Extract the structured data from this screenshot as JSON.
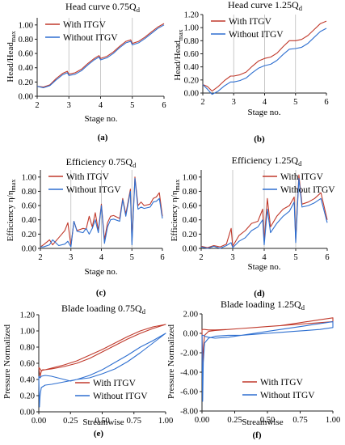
{
  "figure": {
    "background": "#ffffff",
    "axis_color": "#222222",
    "line_width": 1
  },
  "series_colors": {
    "with": "#c0392b",
    "without": "#2e6fd0"
  },
  "chart_data": [
    {
      "id": "a",
      "type": "line",
      "title": "Head curve 0.75Q",
      "title_sub": "d",
      "ylabel": "Head/Head",
      "ylabel_sub": "max",
      "xlabel": "Stage no.",
      "panel_label": "(a)",
      "xlim": [
        2,
        6
      ],
      "ylim": [
        0,
        1.1
      ],
      "xticks": [
        2,
        3,
        4,
        5,
        6
      ],
      "yticks": [
        0.0,
        0.2,
        0.4,
        0.6,
        0.8,
        1.0
      ],
      "ytick_labels": [
        "0.00",
        "0.20",
        "0.40",
        "0.60",
        "0.80",
        "1.00"
      ],
      "vlines": [
        3,
        4,
        5
      ],
      "legend": "top-left",
      "series": [
        {
          "name": "With ITGV",
          "key": "with",
          "x": [
            2.0,
            2.2,
            2.4,
            2.6,
            2.8,
            2.95,
            3.0,
            3.2,
            3.4,
            3.6,
            3.8,
            3.95,
            4.0,
            4.2,
            4.4,
            4.6,
            4.8,
            4.95,
            5.0,
            5.2,
            5.4,
            5.6,
            5.8,
            6.0
          ],
          "y": [
            0.14,
            0.13,
            0.16,
            0.25,
            0.32,
            0.35,
            0.31,
            0.33,
            0.38,
            0.46,
            0.53,
            0.57,
            0.53,
            0.56,
            0.62,
            0.7,
            0.77,
            0.79,
            0.74,
            0.77,
            0.83,
            0.9,
            0.97,
            1.02
          ]
        },
        {
          "name": "Without ITGV",
          "key": "without",
          "x": [
            2.0,
            2.2,
            2.4,
            2.6,
            2.8,
            2.95,
            3.0,
            3.2,
            3.4,
            3.6,
            3.8,
            3.95,
            4.0,
            4.2,
            4.4,
            4.6,
            4.8,
            4.95,
            5.0,
            5.2,
            5.4,
            5.6,
            5.8,
            6.0
          ],
          "y": [
            0.14,
            0.12,
            0.15,
            0.23,
            0.3,
            0.33,
            0.29,
            0.31,
            0.36,
            0.44,
            0.51,
            0.55,
            0.51,
            0.54,
            0.6,
            0.68,
            0.75,
            0.77,
            0.72,
            0.75,
            0.81,
            0.88,
            0.95,
            1.0
          ]
        }
      ]
    },
    {
      "id": "b",
      "type": "line",
      "title": "Head curve 1.25Q",
      "title_sub": "d",
      "ylabel": "Head/Head",
      "ylabel_sub": "max",
      "xlabel": "Stage no.",
      "panel_label": "(b)",
      "xlim": [
        2,
        6
      ],
      "ylim": [
        0,
        1.2
      ],
      "xticks": [
        2,
        3,
        4,
        5,
        6
      ],
      "yticks": [
        0.0,
        0.2,
        0.4,
        0.6,
        0.8,
        1.0,
        1.2
      ],
      "ytick_labels": [
        "0.00",
        "0.20",
        "0.40",
        "0.60",
        "0.80",
        "1.00",
        "1.20"
      ],
      "vlines": [
        3,
        4,
        5
      ],
      "legend": "top-left",
      "series": [
        {
          "name": "With ITGV",
          "key": "with",
          "x": [
            2.0,
            2.15,
            2.3,
            2.5,
            2.7,
            2.9,
            3.0,
            3.2,
            3.4,
            3.6,
            3.8,
            4.0,
            4.2,
            4.4,
            4.6,
            4.8,
            5.0,
            5.2,
            5.4,
            5.6,
            5.8,
            6.0
          ],
          "y": [
            0.13,
            0.1,
            0.03,
            0.1,
            0.19,
            0.26,
            0.26,
            0.28,
            0.32,
            0.41,
            0.49,
            0.53,
            0.55,
            0.61,
            0.71,
            0.8,
            0.8,
            0.82,
            0.88,
            0.97,
            1.06,
            1.1
          ]
        },
        {
          "name": "Without ITGV",
          "key": "without",
          "x": [
            2.0,
            2.15,
            2.3,
            2.5,
            2.7,
            2.9,
            3.0,
            3.2,
            3.4,
            3.6,
            3.8,
            4.0,
            4.2,
            4.4,
            4.6,
            4.8,
            5.0,
            5.2,
            5.4,
            5.6,
            5.8,
            6.0
          ],
          "y": [
            0.13,
            0.06,
            -0.02,
            0.03,
            0.11,
            0.17,
            0.17,
            0.19,
            0.23,
            0.31,
            0.38,
            0.42,
            0.44,
            0.5,
            0.59,
            0.67,
            0.68,
            0.7,
            0.76,
            0.85,
            0.94,
            0.99
          ]
        }
      ]
    },
    {
      "id": "c",
      "type": "line",
      "title": "Efficiency 0.75Q",
      "title_sub": "d",
      "ylabel": "Efficiency η/η",
      "ylabel_sub": "max",
      "xlabel": "Stage no.",
      "panel_label": "(c)",
      "xlim": [
        2,
        6
      ],
      "ylim": [
        0,
        1.1
      ],
      "xticks": [
        2,
        3,
        4,
        5,
        6
      ],
      "yticks": [
        0.0,
        0.2,
        0.4,
        0.6,
        0.8,
        1.0
      ],
      "ytick_labels": [
        "0.00",
        "0.20",
        "0.40",
        "0.60",
        "0.80",
        "1.00"
      ],
      "vlines": [
        3,
        4,
        5
      ],
      "legend": "top-left",
      "series": [
        {
          "name": "With ITGV",
          "key": "with",
          "x": [
            2.0,
            2.1,
            2.3,
            2.4,
            2.6,
            2.8,
            2.9,
            3.0,
            3.1,
            3.2,
            3.4,
            3.5,
            3.6,
            3.7,
            3.8,
            3.9,
            4.0,
            4.1,
            4.2,
            4.3,
            4.4,
            4.6,
            4.7,
            4.8,
            4.95,
            5.0,
            5.1,
            5.2,
            5.3,
            5.4,
            5.6,
            5.7,
            5.8,
            5.9,
            6.0
          ],
          "y": [
            0.02,
            0.05,
            0.12,
            0.05,
            0.15,
            0.25,
            0.36,
            0.04,
            0.38,
            0.25,
            0.28,
            0.27,
            0.45,
            0.3,
            0.5,
            0.25,
            0.62,
            0.12,
            0.36,
            0.45,
            0.46,
            0.42,
            0.7,
            0.48,
            0.83,
            0.1,
            1.0,
            0.6,
            0.65,
            0.6,
            0.62,
            0.7,
            0.72,
            0.78,
            0.45
          ]
        },
        {
          "name": "Without ITGV",
          "key": "without",
          "x": [
            2.0,
            2.1,
            2.3,
            2.4,
            2.6,
            2.8,
            2.9,
            3.0,
            3.1,
            3.2,
            3.4,
            3.5,
            3.6,
            3.7,
            3.8,
            3.9,
            4.0,
            4.1,
            4.2,
            4.3,
            4.4,
            4.6,
            4.7,
            4.8,
            4.95,
            5.0,
            5.1,
            5.2,
            5.3,
            5.4,
            5.6,
            5.7,
            5.8,
            5.9,
            6.0
          ],
          "y": [
            0.02,
            0.02,
            0.05,
            0.12,
            0.04,
            0.06,
            0.1,
            0.02,
            0.38,
            0.24,
            0.22,
            0.28,
            0.2,
            0.28,
            0.4,
            0.22,
            0.6,
            0.07,
            0.3,
            0.4,
            0.41,
            0.38,
            0.68,
            0.45,
            0.8,
            0.05,
            0.98,
            0.55,
            0.58,
            0.56,
            0.58,
            0.65,
            0.66,
            0.7,
            0.42
          ]
        }
      ]
    },
    {
      "id": "d",
      "type": "line",
      "title": "Efficiency 1.25Q",
      "title_sub": "d",
      "ylabel": "Efficiency η/η",
      "ylabel_sub": "max",
      "xlabel": "Stage no.",
      "panel_label": "(d)",
      "xlim": [
        2,
        6
      ],
      "ylim": [
        0,
        1.1
      ],
      "xticks": [
        2,
        3,
        4,
        5,
        6
      ],
      "yticks": [
        0.0,
        0.2,
        0.4,
        0.6,
        0.8,
        1.0
      ],
      "ytick_labels": [
        "0.00",
        "0.20",
        "0.40",
        "0.60",
        "0.80",
        "1.00"
      ],
      "vlines": [
        3,
        4,
        5
      ],
      "legend": "top-right",
      "series": [
        {
          "name": "With ITGV",
          "key": "with",
          "x": [
            2.0,
            2.2,
            2.4,
            2.6,
            2.8,
            2.95,
            3.0,
            3.2,
            3.4,
            3.6,
            3.8,
            3.95,
            4.0,
            4.1,
            4.2,
            4.4,
            4.6,
            4.8,
            4.95,
            5.0,
            5.1,
            5.2,
            5.4,
            5.6,
            5.8,
            6.0
          ],
          "y": [
            0.03,
            0.01,
            0.04,
            0.02,
            0.06,
            0.28,
            0.03,
            0.18,
            0.25,
            0.35,
            0.38,
            0.55,
            0.1,
            0.7,
            0.3,
            0.45,
            0.55,
            0.6,
            0.72,
            0.12,
            1.03,
            0.62,
            0.65,
            0.7,
            0.78,
            0.4
          ]
        },
        {
          "name": "Without ITGV",
          "key": "without",
          "x": [
            2.0,
            2.2,
            2.4,
            2.6,
            2.8,
            2.95,
            3.0,
            3.2,
            3.4,
            3.6,
            3.8,
            3.95,
            4.0,
            4.1,
            4.2,
            4.4,
            4.6,
            4.8,
            4.95,
            5.0,
            5.1,
            5.2,
            5.4,
            5.6,
            5.8,
            6.0
          ],
          "y": [
            0.02,
            0.0,
            0.03,
            0.0,
            0.04,
            0.08,
            0.01,
            0.1,
            0.15,
            0.25,
            0.3,
            0.4,
            0.05,
            0.55,
            0.22,
            0.35,
            0.45,
            0.52,
            0.65,
            0.08,
            0.98,
            0.58,
            0.6,
            0.64,
            0.7,
            0.36
          ]
        }
      ]
    },
    {
      "id": "e",
      "type": "line",
      "title": "Blade loading 0.75Q",
      "title_sub": "d",
      "ylabel": "Pressure Normalized",
      "ylabel_sub": "",
      "xlabel": "Streamwise",
      "panel_label": "(e)",
      "xlim": [
        0,
        1
      ],
      "ylim": [
        0,
        1.2
      ],
      "xticks": [
        0,
        0.25,
        0.5,
        0.75,
        1.0
      ],
      "xtick_labels": [
        "0.00",
        "0.25",
        "0.50",
        "0.75",
        "1.00"
      ],
      "yticks": [
        0.0,
        0.2,
        0.4,
        0.6,
        0.8,
        1.0,
        1.2
      ],
      "ytick_labels": [
        "0.00",
        "0.20",
        "0.40",
        "0.60",
        "0.80",
        "1.00",
        "1.20"
      ],
      "legend": "bottom-right",
      "series": [
        {
          "name": "With ITGV",
          "key": "with",
          "x": [
            0.0,
            0.01,
            0.02,
            0.03,
            0.05,
            0.1,
            0.2,
            0.3,
            0.4,
            0.5,
            0.6,
            0.7,
            0.8,
            0.9,
            1.0,
            1.0,
            0.9,
            0.8,
            0.7,
            0.6,
            0.5,
            0.4,
            0.3,
            0.2,
            0.1,
            0.05,
            0.02,
            0.0
          ],
          "y": [
            0.55,
            0.44,
            0.5,
            0.52,
            0.52,
            0.53,
            0.56,
            0.6,
            0.66,
            0.74,
            0.82,
            0.9,
            0.97,
            1.03,
            1.08,
            1.08,
            1.05,
            1.0,
            0.93,
            0.85,
            0.77,
            0.7,
            0.63,
            0.58,
            0.54,
            0.52,
            0.51,
            0.55
          ]
        },
        {
          "name": "Without ITGV",
          "key": "without",
          "x": [
            0.0,
            0.005,
            0.01,
            0.02,
            0.05,
            0.1,
            0.2,
            0.3,
            0.4,
            0.5,
            0.6,
            0.7,
            0.8,
            0.9,
            1.0,
            1.0,
            0.9,
            0.8,
            0.7,
            0.6,
            0.5,
            0.4,
            0.3,
            0.25,
            0.2,
            0.15,
            0.1,
            0.05,
            0.02,
            0.01,
            0.0
          ],
          "y": [
            0.44,
            0.06,
            0.2,
            0.3,
            0.33,
            0.34,
            0.37,
            0.4,
            0.45,
            0.52,
            0.61,
            0.7,
            0.8,
            0.88,
            0.97,
            0.97,
            0.85,
            0.73,
            0.62,
            0.53,
            0.47,
            0.42,
            0.4,
            0.38,
            0.4,
            0.42,
            0.44,
            0.45,
            0.44,
            0.42,
            0.44
          ]
        }
      ]
    },
    {
      "id": "f",
      "type": "line",
      "title": "Blade loading 1.25Q",
      "title_sub": "d",
      "ylabel": "Pressure Normalized",
      "ylabel_sub": "",
      "xlabel": "Streamwise",
      "panel_label": "(f)",
      "xlim": [
        0,
        1
      ],
      "ylim": [
        -8,
        2
      ],
      "xticks": [
        0,
        0.25,
        0.5,
        0.75,
        1.0
      ],
      "xtick_labels": [
        "0.00",
        "0.25",
        "0.50",
        "0.75",
        "1.00"
      ],
      "yticks": [
        -8,
        -6,
        -4,
        -2,
        0,
        2
      ],
      "ytick_labels": [
        "-8.00",
        "-6.00",
        "-4.00",
        "-2.00",
        "0.00",
        "2.00"
      ],
      "legend": "bottom-right",
      "series": [
        {
          "name": "With ITGV",
          "key": "with",
          "x": [
            0.0,
            0.005,
            0.01,
            0.02,
            0.05,
            0.1,
            0.2,
            0.3,
            0.4,
            0.5,
            0.6,
            0.7,
            0.8,
            0.9,
            1.0,
            1.0,
            0.9,
            0.8,
            0.7,
            0.6,
            0.5,
            0.4,
            0.3,
            0.2,
            0.1,
            0.05,
            0.02,
            0.0
          ],
          "y": [
            0.4,
            -4.0,
            -1.5,
            -0.2,
            0.2,
            0.3,
            0.4,
            0.5,
            0.6,
            0.7,
            0.8,
            0.9,
            1.0,
            1.1,
            1.2,
            1.6,
            1.4,
            1.2,
            1.0,
            0.8,
            0.7,
            0.6,
            0.5,
            0.4,
            0.35,
            0.35,
            0.4,
            0.4
          ]
        },
        {
          "name": "Without ITGV",
          "key": "without",
          "x": [
            0.0,
            0.005,
            0.01,
            0.02,
            0.05,
            0.1,
            0.2,
            0.3,
            0.4,
            0.5,
            0.6,
            0.7,
            0.8,
            0.9,
            1.0,
            1.0,
            0.9,
            0.8,
            0.7,
            0.6,
            0.5,
            0.4,
            0.3,
            0.2,
            0.1,
            0.05,
            0.02,
            0.01,
            0.0
          ],
          "y": [
            -0.2,
            -7.0,
            -3.0,
            -1.0,
            -0.5,
            -0.3,
            -0.2,
            -0.2,
            -0.1,
            0.0,
            0.1,
            0.2,
            0.3,
            0.4,
            0.6,
            1.2,
            1.0,
            0.8,
            0.6,
            0.4,
            0.2,
            0.0,
            -0.2,
            -0.4,
            -0.5,
            -0.4,
            -0.3,
            -0.2,
            -0.2
          ]
        }
      ]
    }
  ]
}
